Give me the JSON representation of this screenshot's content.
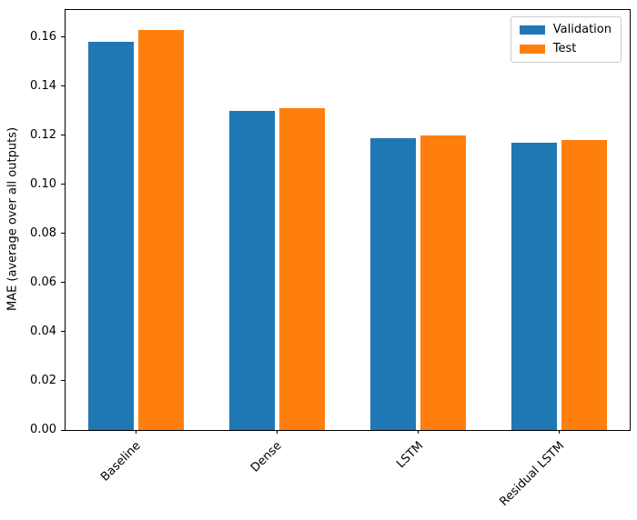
{
  "figure": {
    "background": "#ffffff",
    "axis_color": "#000000",
    "legend_border_color": "#cccccc"
  },
  "chart_data": {
    "type": "bar",
    "title": "",
    "xlabel": "",
    "ylabel": "MAE (average over all outputs)",
    "categories": [
      "Baseline",
      "Dense",
      "LSTM",
      "Residual LSTM"
    ],
    "series": [
      {
        "name": "Validation",
        "color": "#1f77b4",
        "values": [
          0.158,
          0.13,
          0.119,
          0.117
        ]
      },
      {
        "name": "Test",
        "color": "#ff7f0e",
        "values": [
          0.163,
          0.131,
          0.12,
          0.118
        ]
      }
    ],
    "ylim": [
      0,
      0.171
    ],
    "yticks": [
      0.0,
      0.02,
      0.04,
      0.06,
      0.08,
      0.1,
      0.12,
      0.14,
      0.16
    ],
    "ytick_labels": [
      "0.00",
      "0.02",
      "0.04",
      "0.06",
      "0.08",
      "0.10",
      "0.12",
      "0.14",
      "0.16"
    ],
    "xtick_rotation_deg": 45,
    "grid": false,
    "legend": {
      "position": "upper right",
      "entries": [
        "Validation",
        "Test"
      ]
    }
  }
}
